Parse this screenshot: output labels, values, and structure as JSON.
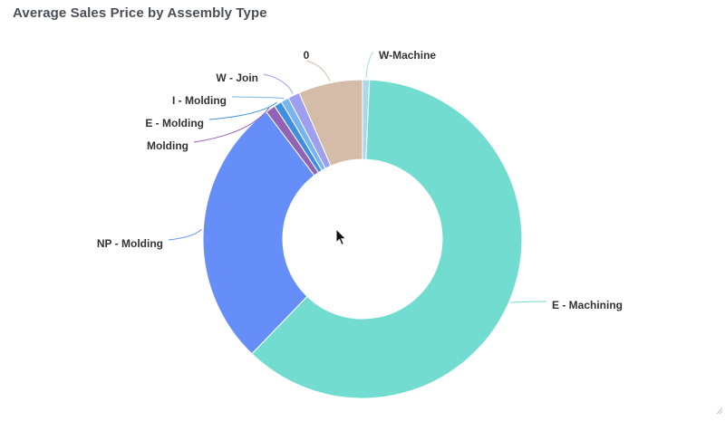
{
  "chart_data": {
    "type": "pie",
    "variant": "donut",
    "title": "Average Sales Price by Assembly Type",
    "legend": "none",
    "slices": [
      {
        "label": "W-Machine",
        "value": 0.7,
        "color": "#a8d8ec"
      },
      {
        "label": "E - Machining",
        "value": 61.5,
        "color": "#71dccf"
      },
      {
        "label": "NP - Molding",
        "value": 27.5,
        "color": "#668ef9"
      },
      {
        "label": "Molding",
        "value": 1.0,
        "color": "#9262b5"
      },
      {
        "label": "E - Molding",
        "value": 0.8,
        "color": "#3f8ee0"
      },
      {
        "label": "I - Molding",
        "value": 0.8,
        "color": "#78b4ef"
      },
      {
        "label": "W - Join",
        "value": 1.2,
        "color": "#9f9ff0"
      },
      {
        "label": "0",
        "value": 6.5,
        "color": "#d5bca9"
      }
    ]
  }
}
